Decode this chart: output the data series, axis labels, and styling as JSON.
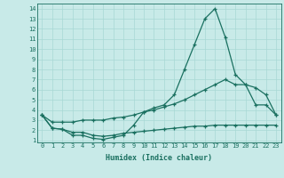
{
  "xlabel": "Humidex (Indice chaleur)",
  "x_values": [
    0,
    1,
    2,
    3,
    4,
    5,
    6,
    7,
    8,
    9,
    10,
    11,
    12,
    13,
    14,
    15,
    16,
    17,
    18,
    19,
    20,
    21,
    22,
    23
  ],
  "line1": [
    3.5,
    2.2,
    2.1,
    1.5,
    1.5,
    1.2,
    1.1,
    1.3,
    1.5,
    2.5,
    3.8,
    4.2,
    4.5,
    5.5,
    8.0,
    10.5,
    13.0,
    14.0,
    11.2,
    7.5,
    6.5,
    4.5,
    4.5,
    3.5
  ],
  "line2": [
    3.5,
    2.2,
    2.1,
    1.8,
    1.8,
    1.5,
    1.4,
    1.5,
    1.7,
    1.8,
    1.9,
    2.0,
    2.1,
    2.2,
    2.3,
    2.4,
    2.4,
    2.5,
    2.5,
    2.5,
    2.5,
    2.5,
    2.5,
    2.5
  ],
  "line3": [
    3.5,
    2.8,
    2.8,
    2.8,
    3.0,
    3.0,
    3.0,
    3.2,
    3.3,
    3.5,
    3.8,
    4.0,
    4.3,
    4.6,
    5.0,
    5.5,
    6.0,
    6.5,
    7.0,
    6.5,
    6.5,
    6.2,
    5.5,
    3.5
  ],
  "line_color": "#1a7060",
  "bg_color": "#c8eae8",
  "grid_color": "#a8d8d4",
  "ylim_min": 0.8,
  "ylim_max": 14.5,
  "xlim_min": -0.5,
  "xlim_max": 23.5,
  "yticks": [
    1,
    2,
    3,
    4,
    5,
    6,
    7,
    8,
    9,
    10,
    11,
    12,
    13,
    14
  ],
  "xticks": [
    0,
    1,
    2,
    3,
    4,
    5,
    6,
    7,
    8,
    9,
    10,
    11,
    12,
    13,
    14,
    15,
    16,
    17,
    18,
    19,
    20,
    21,
    22,
    23
  ],
  "marker": "+",
  "markersize": 3,
  "linewidth": 0.9,
  "tick_fontsize": 5,
  "xlabel_fontsize": 6
}
